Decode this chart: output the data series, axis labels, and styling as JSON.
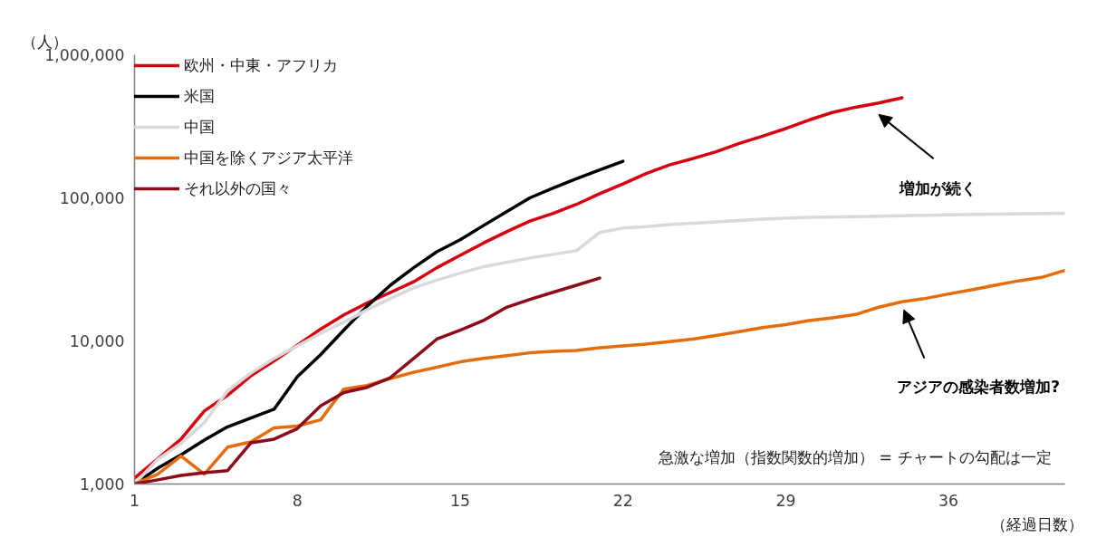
{
  "chart_data": {
    "type": "line",
    "log": "y",
    "grid": false,
    "legend": "top left",
    "line_style": "solid",
    "marker": "none",
    "ylabel": "（人）",
    "xlabel": "（経過日数）",
    "xlim": [
      1,
      41
    ],
    "xticks": [
      1,
      8,
      15,
      22,
      29,
      36
    ],
    "ylim": [
      1000,
      1000000
    ],
    "yticks": [
      {
        "value": 1000,
        "label": "1,000"
      },
      {
        "value": 10000,
        "label": "10,000"
      },
      {
        "value": 100000,
        "label": "100,000"
      },
      {
        "value": 1000000,
        "label": "1,000,000"
      }
    ],
    "series": [
      {
        "name": "欧州・中東・アフリカ",
        "color": "#d7000f",
        "x": [
          1,
          2,
          3,
          4,
          5,
          6,
          7,
          8,
          9,
          10,
          11,
          12,
          13,
          14,
          15,
          16,
          17,
          18,
          19,
          20,
          21,
          22,
          23,
          24,
          25,
          26,
          27,
          28,
          29,
          30,
          31,
          32,
          33,
          34
        ],
        "values": [
          1100,
          1500,
          2060,
          3240,
          4170,
          5700,
          7250,
          9350,
          12100,
          15200,
          18400,
          21800,
          25900,
          32500,
          39600,
          48300,
          58000,
          68800,
          78000,
          90000,
          107000,
          125000,
          148000,
          170000,
          188000,
          210000,
          240000,
          270000,
          305000,
          350000,
          395000,
          430000,
          460000,
          500000
        ]
      },
      {
        "name": "米国",
        "color": "#000000",
        "x": [
          1,
          2,
          3,
          4,
          5,
          6,
          7,
          8,
          9,
          10,
          11,
          12,
          13,
          14,
          15,
          16,
          17,
          18,
          19,
          20,
          21,
          22
        ],
        "values": [
          1000,
          1290,
          1600,
          2030,
          2510,
          2890,
          3330,
          5630,
          8000,
          11900,
          17500,
          24500,
          32500,
          42000,
          51000,
          64000,
          80000,
          100000,
          117000,
          136000,
          157000,
          180000
        ]
      },
      {
        "name": "中国",
        "color": "#d9d9d9",
        "x": [
          1,
          2,
          3,
          4,
          5,
          6,
          7,
          8,
          9,
          10,
          11,
          12,
          13,
          14,
          15,
          16,
          17,
          18,
          19,
          20,
          21,
          22,
          23,
          24,
          26,
          28,
          30,
          32,
          34,
          36,
          38,
          41
        ],
        "values": [
          1000,
          1490,
          1920,
          2690,
          4480,
          5950,
          7550,
          9230,
          11270,
          13500,
          16500,
          19800,
          23500,
          26600,
          29800,
          33000,
          35400,
          38000,
          40300,
          42700,
          57300,
          61500,
          63000,
          65000,
          68000,
          71000,
          73000,
          74000,
          75000,
          76000,
          77000,
          78000
        ]
      },
      {
        "name": "中国を除くアジア太平洋",
        "color": "#e46c0a",
        "x": [
          1,
          2,
          3,
          4,
          5,
          6,
          7,
          8,
          9,
          10,
          11,
          12,
          13,
          14,
          15,
          16,
          17,
          18,
          19,
          20,
          21,
          22,
          23,
          24,
          25,
          26,
          27,
          28,
          29,
          30,
          31,
          32,
          33,
          34,
          35,
          36,
          37,
          38,
          39,
          40,
          41
        ],
        "values": [
          1000,
          1170,
          1570,
          1170,
          1810,
          1970,
          2470,
          2540,
          2810,
          4610,
          4880,
          5460,
          6040,
          6560,
          7140,
          7560,
          7900,
          8260,
          8460,
          8590,
          8960,
          9230,
          9500,
          9900,
          10300,
          10900,
          11600,
          12400,
          13000,
          13900,
          14500,
          15300,
          17200,
          18800,
          19800,
          21300,
          22800,
          24500,
          26300,
          27800,
          31100
        ]
      },
      {
        "name": "それ以外の国々",
        "color": "#8c0a1a",
        "x": [
          1,
          2,
          3,
          4,
          5,
          6,
          7,
          8,
          9,
          10,
          11,
          12,
          13,
          14,
          15,
          16,
          17,
          18,
          19,
          20,
          21
        ],
        "values": [
          1000,
          1070,
          1150,
          1200,
          1240,
          1940,
          2060,
          2440,
          3520,
          4360,
          4740,
          5540,
          7550,
          10300,
          11900,
          13900,
          17200,
          19500,
          21900,
          24500,
          27500
        ]
      }
    ],
    "annotations": [
      "増加が続く",
      "アジアの感染者数増加?",
      "急激な増加（指数関数的増加） = チャートの勾配は一定"
    ]
  }
}
